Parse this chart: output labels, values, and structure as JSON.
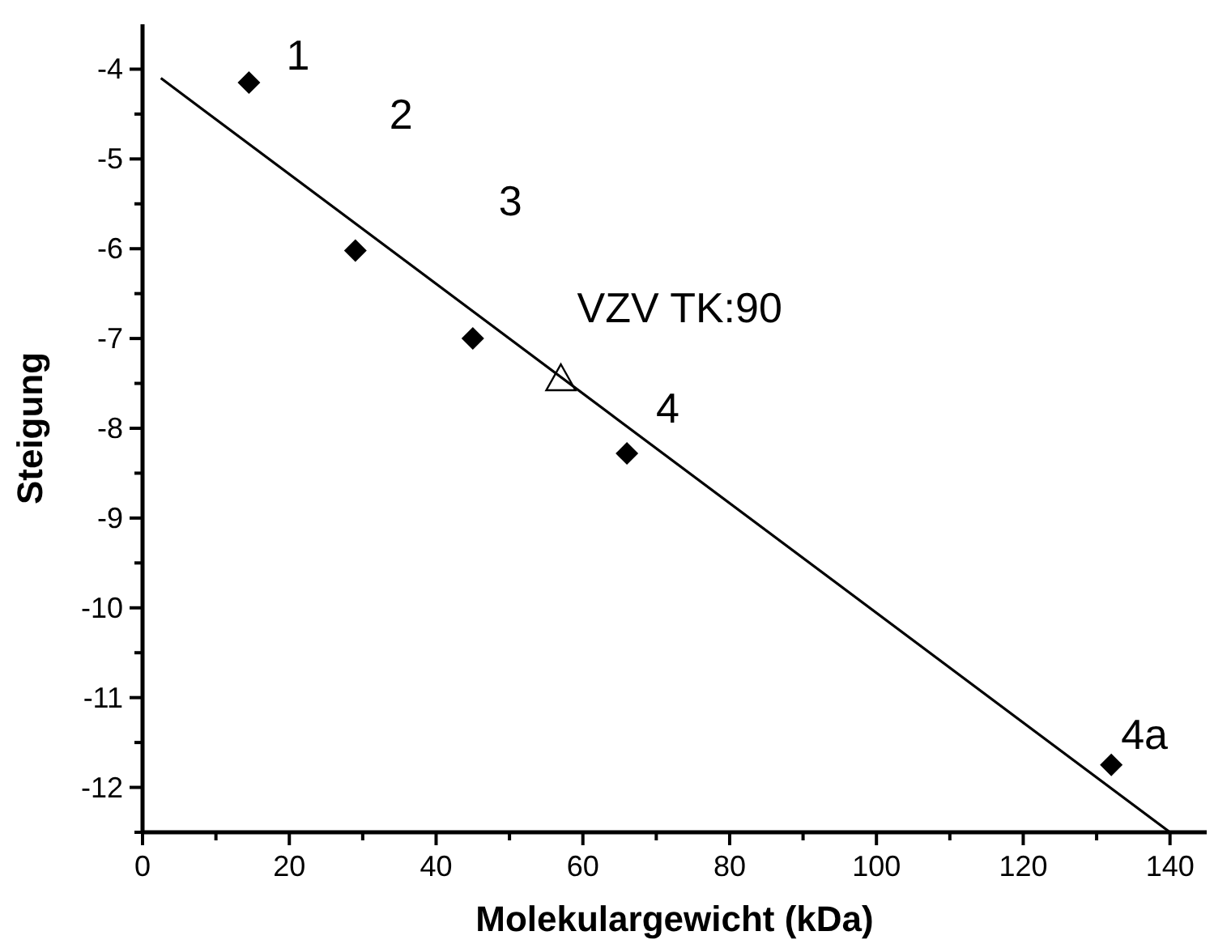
{
  "chart_data": {
    "type": "scatter",
    "xlabel": "Molekulargewicht (kDa)",
    "ylabel": "Steigung",
    "xlim": [
      0,
      145
    ],
    "ylim": [
      -12.5,
      -3.5
    ],
    "xticks": [
      0,
      {
        "value": 10,
        "label": null
      },
      20,
      {
        "value": 30,
        "label": null
      },
      40,
      {
        "value": 50,
        "label": null
      },
      60,
      {
        "value": 70,
        "label": null
      },
      80,
      {
        "value": 90,
        "label": null
      },
      100,
      {
        "value": 110,
        "label": null
      },
      120,
      {
        "value": 130,
        "label": null
      },
      140
    ],
    "yticks": [
      {
        "value": -12.5,
        "label": null
      },
      -12,
      {
        "value": -11.5,
        "label": null
      },
      -11,
      {
        "value": -10.5,
        "label": null
      },
      -10,
      {
        "value": -9.5,
        "label": null
      },
      -9,
      {
        "value": -8.5,
        "label": null
      },
      -8,
      {
        "value": -7.5,
        "label": null
      },
      -7,
      {
        "value": -6.5,
        "label": null
      },
      -6,
      {
        "value": -5.5,
        "label": null
      },
      -5,
      {
        "value": -4.5,
        "label": null
      },
      -4
    ],
    "grid": false,
    "series": [
      {
        "marker": "diamond",
        "color": "#000000",
        "x": [
          14.5,
          29,
          45,
          66,
          132
        ],
        "values": [
          -4.15,
          -6.02,
          -7.0,
          -8.28,
          -11.75
        ]
      },
      {
        "type": "scatter",
        "marker": "triangle",
        "color": "#000000",
        "x": [
          57
        ],
        "values": [
          -7.45
        ]
      },
      {
        "type": "line",
        "marker": "none",
        "color": "#000000",
        "x": [
          2.5,
          140
        ],
        "values": [
          -4.1,
          -12.5
        ]
      }
    ],
    "annotations": [
      {
        "text": "1",
        "x": 14.5,
        "y": -4.15
      },
      {
        "text": "2",
        "x": 29,
        "y": -6.02
      },
      {
        "text": "3",
        "x": 45,
        "y": -7.0
      },
      {
        "text": "VZV TK:90",
        "x": 57,
        "y": -7.45
      },
      {
        "text": "4",
        "x": 66,
        "y": -8.28
      },
      {
        "text": "4a",
        "x": 132,
        "y": -11.75
      }
    ]
  }
}
